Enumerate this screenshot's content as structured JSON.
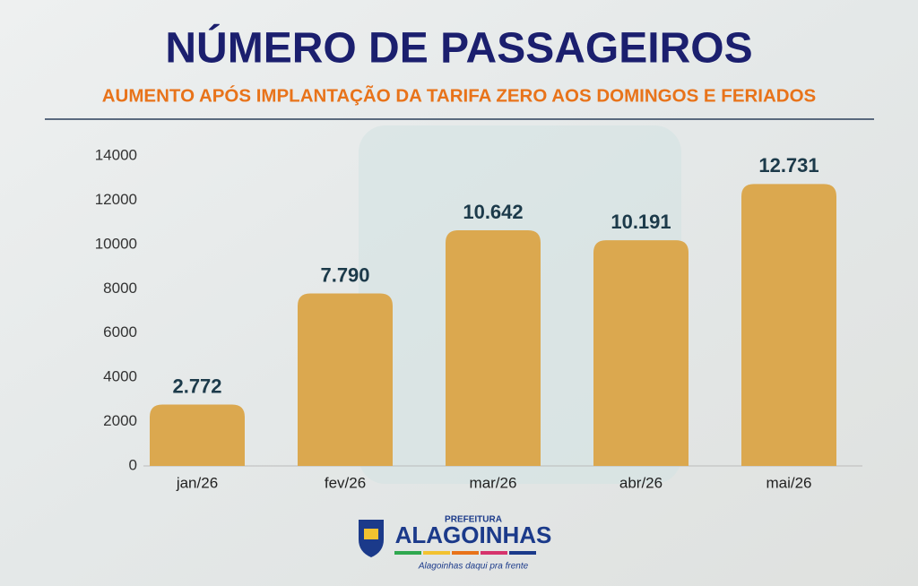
{
  "chart_data": {
    "type": "bar",
    "title": "NÚMERO DE PASSAGEIROS",
    "subtitle": "AUMENTO APÓS IMPLANTAÇÃO DA TARIFA ZERO AOS DOMINGOS E FERIADOS",
    "categories": [
      "jan/26",
      "fev/26",
      "mar/26",
      "abr/26",
      "mai/26"
    ],
    "values": [
      2772,
      7790,
      10642,
      10191,
      12731
    ],
    "value_labels": [
      "2.772",
      "7.790",
      "10.642",
      "10.191",
      "12.731"
    ],
    "color": "#dba84f",
    "ylim": [
      0,
      14000
    ],
    "yticks": [
      0,
      2000,
      4000,
      6000,
      8000,
      10000,
      12000,
      14000
    ],
    "grid": false
  },
  "footer": {
    "top": "PREFEITURA",
    "name": "ALAGOINHAS",
    "slogan": "Alagoinhas daqui pra frente"
  }
}
